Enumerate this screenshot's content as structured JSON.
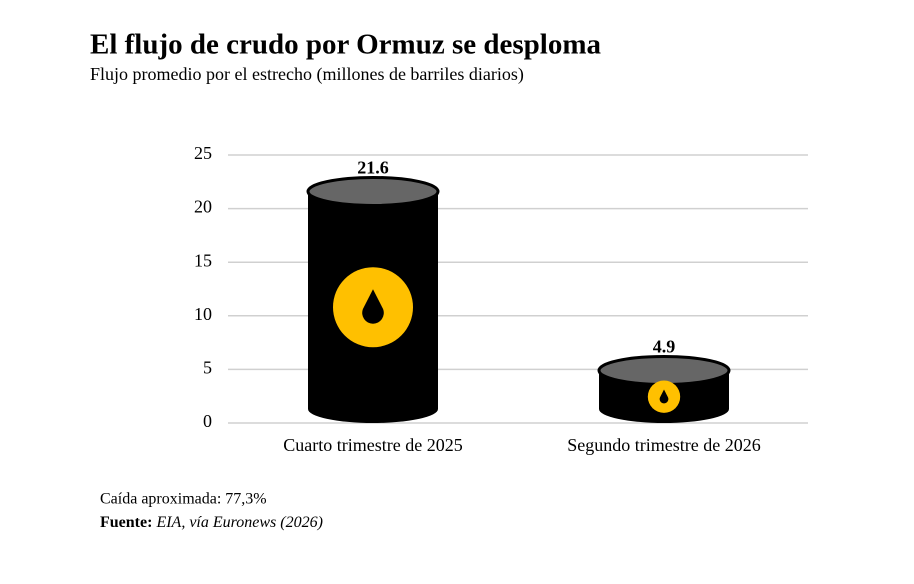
{
  "chart_data": {
    "type": "barrel",
    "title": "El flujo de crudo por Ormuz se desploma",
    "subtitle": "Flujo promedio por el estrecho (millones de barriles diarios)",
    "categories": [
      "Cuarto trimestre de 2025",
      "Segundo trimestre de 2026"
    ],
    "values": [
      21.6,
      4.9
    ],
    "color": "#000000",
    "top_color": "#666666",
    "icon_color": "#ffc000",
    "ylim": [
      0,
      25
    ],
    "yticks": [
      0,
      5,
      10,
      15,
      20,
      25
    ],
    "grid": true
  },
  "notes": "Caída aproximada: 77,3%",
  "source": {
    "label": "Fuente:",
    "text": "EIA, vía Euronews (2026)"
  }
}
